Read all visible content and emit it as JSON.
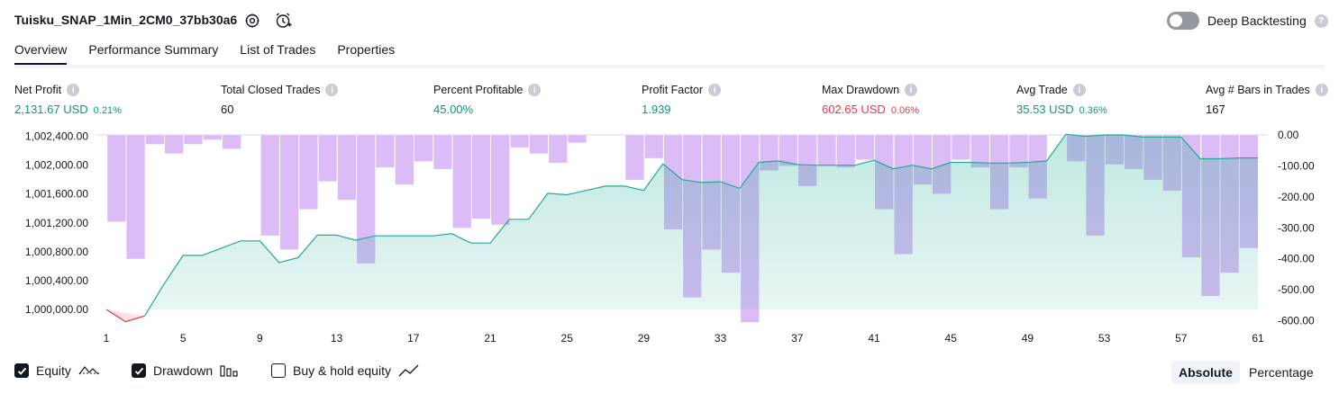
{
  "header": {
    "title": "Tuisku_SNAP_1Min_2CM0_37bb30a6",
    "deep_backtesting_label": "Deep Backtesting"
  },
  "tabs": [
    {
      "label": "Overview",
      "active": true
    },
    {
      "label": "Performance Summary",
      "active": false
    },
    {
      "label": "List of Trades",
      "active": false
    },
    {
      "label": "Properties",
      "active": false
    }
  ],
  "metrics": {
    "net_profit": {
      "label": "Net Profit",
      "value": "2,131.67 USD",
      "pct": "0.21%"
    },
    "total_closed_trades": {
      "label": "Total Closed Trades",
      "value": "60"
    },
    "percent_profitable": {
      "label": "Percent Profitable",
      "value": "45.00%"
    },
    "profit_factor": {
      "label": "Profit Factor",
      "value": "1.939"
    },
    "max_drawdown": {
      "label": "Max Drawdown",
      "value": "602.65 USD",
      "pct": "0.06%"
    },
    "avg_trade": {
      "label": "Avg Trade",
      "value": "35.53 USD",
      "pct": "0.36%"
    },
    "avg_bars": {
      "label": "Avg # Bars in Trades",
      "value": "167"
    }
  },
  "legend": {
    "equity": "Equity",
    "drawdown": "Drawdown",
    "buy_hold": "Buy & hold equity"
  },
  "view_modes": {
    "absolute": "Absolute",
    "percentage": "Percentage"
  },
  "colors": {
    "equity_line": "#22ab94",
    "equity_fill": "#d5f1eb",
    "loss_line": "#f23645",
    "drawdown_bar": "#d9b8f7",
    "green": "#089981",
    "red": "#f23645"
  },
  "chart_data": {
    "type": "bar+area",
    "x_ticks": [
      "1",
      "5",
      "9",
      "13",
      "17",
      "21",
      "25",
      "29",
      "33",
      "37",
      "41",
      "45",
      "49",
      "53",
      "57",
      "61"
    ],
    "left_axis": {
      "ticks": [
        "1,002,400.00",
        "1,002,000.00",
        "1,001,600.00",
        "1,001,200.00",
        "1,000,800.00",
        "1,000,400.00",
        "1,000,000.00"
      ],
      "range": [
        999800,
        1002420
      ]
    },
    "right_axis": {
      "ticks": [
        "0.00",
        "-100.00",
        "-200.00",
        "-300.00",
        "-400.00",
        "-500.00",
        "-600.00"
      ],
      "range": [
        -610,
        0
      ]
    },
    "equity": {
      "name": "Equity",
      "x": [
        1,
        2,
        3,
        4,
        5,
        6,
        7,
        8,
        9,
        10,
        11,
        12,
        13,
        14,
        15,
        16,
        17,
        18,
        19,
        20,
        21,
        22,
        23,
        24,
        25,
        26,
        27,
        28,
        29,
        30,
        31,
        32,
        33,
        34,
        35,
        36,
        37,
        38,
        39,
        40,
        41,
        42,
        43,
        44,
        45,
        46,
        47,
        48,
        49,
        50,
        51,
        52,
        53,
        54,
        55,
        56,
        57,
        58,
        59,
        60,
        61
      ],
      "y": [
        1000000,
        999830,
        999910,
        1000350,
        1000750,
        1000750,
        1000850,
        1000950,
        1000950,
        1000650,
        1000720,
        1001030,
        1001030,
        1000960,
        1001020,
        1001020,
        1001020,
        1001020,
        1001050,
        1000920,
        1000920,
        1001250,
        1001250,
        1001610,
        1001590,
        1001650,
        1001710,
        1001710,
        1001650,
        1002020,
        1001800,
        1001760,
        1001770,
        1001680,
        1002040,
        1002060,
        1002010,
        1002000,
        1002000,
        1002000,
        1002070,
        1001950,
        1002000,
        1001950,
        1002040,
        1002040,
        1002030,
        1002030,
        1002040,
        1002060,
        1002430,
        1002400,
        1002420,
        1002420,
        1002390,
        1002390,
        1002390,
        1002090,
        1002090,
        1002100,
        1002100
      ]
    },
    "drawdown": {
      "name": "Drawdown",
      "x": [
        2,
        3,
        4,
        5,
        6,
        7,
        8,
        9,
        10,
        11,
        12,
        13,
        14,
        15,
        16,
        17,
        18,
        19,
        20,
        21,
        22,
        23,
        24,
        25,
        26,
        27,
        28,
        29,
        30,
        31,
        32,
        33,
        34,
        35,
        36,
        37,
        38,
        39,
        40,
        41,
        42,
        43,
        44,
        45,
        46,
        47,
        48,
        49,
        50,
        51,
        52,
        53,
        54,
        55,
        56,
        57,
        58,
        59,
        60,
        61
      ],
      "y": [
        -280,
        -400,
        -30,
        -60,
        -30,
        -15,
        -45,
        0,
        -325,
        -370,
        -240,
        -150,
        -210,
        -415,
        -105,
        -160,
        -85,
        -110,
        -300,
        -270,
        -290,
        -40,
        -60,
        -90,
        -25,
        0,
        0,
        -145,
        -75,
        -305,
        -525,
        -370,
        -445,
        -605,
        -115,
        -100,
        -165,
        -100,
        -105,
        -80,
        -240,
        -385,
        -160,
        -190,
        -80,
        -105,
        -240,
        -105,
        -205,
        0,
        -85,
        -325,
        -95,
        -110,
        -145,
        -180,
        -395,
        -520,
        -445,
        -365
      ]
    }
  }
}
